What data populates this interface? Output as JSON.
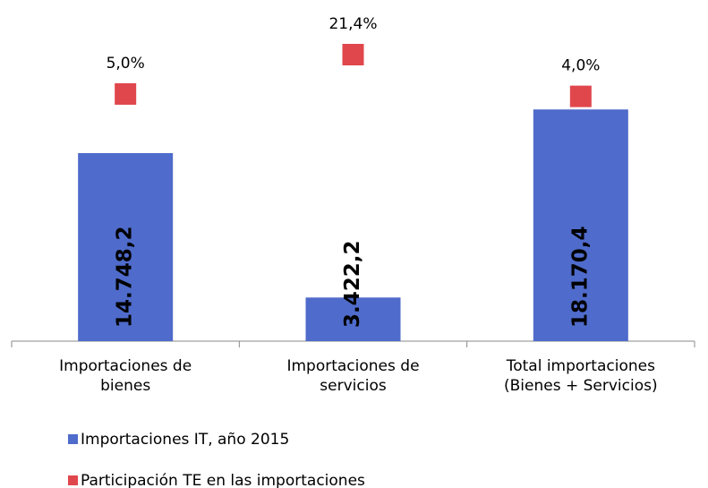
{
  "chart_data": {
    "type": "bar_marker",
    "categories": [
      "Importaciones de\nbienes",
      "Importaciones de\nservicios",
      "Total importaciones\n(Bienes + Servicios)"
    ],
    "series": [
      {
        "name": "Importaciones IT, año 2015",
        "color": "#4f6bcb",
        "type": "bar",
        "values": [
          14748.2,
          3422.2,
          18170.4
        ],
        "value_labels": [
          "14.748,2",
          "3.422,2",
          "18.170,4"
        ]
      },
      {
        "name": "Participación TE en las importaciones",
        "color": "#e0474c",
        "type": "marker",
        "axis": "y2",
        "values": [
          5.0,
          21.4,
          4.0
        ],
        "value_labels": [
          "5,0%",
          "21,4%",
          "4,0%"
        ]
      }
    ],
    "ylim": [
      0,
      25350
    ],
    "y2lim": [
      -98,
      36.7
    ],
    "legend": "bottom-left"
  }
}
